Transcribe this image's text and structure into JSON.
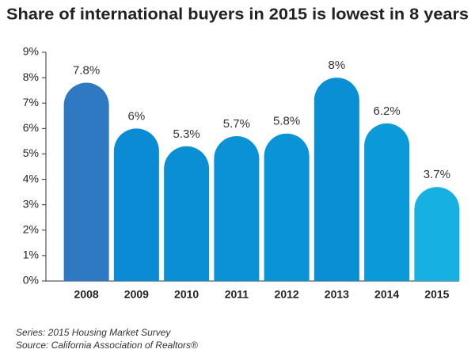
{
  "chart_data": {
    "type": "bar",
    "title": "Share of international buyers in 2015 is lowest in 8 years",
    "categories": [
      "2008",
      "2009",
      "2010",
      "2011",
      "2012",
      "2013",
      "2014",
      "2015"
    ],
    "values": [
      7.8,
      6,
      5.3,
      5.7,
      5.8,
      8,
      6.2,
      3.7
    ],
    "value_labels": [
      "7.8%",
      "6%",
      "5.3%",
      "5.7%",
      "5.8%",
      "8%",
      "6.2%",
      "3.7%"
    ],
    "colors": [
      "#2f78c2",
      "#0b8bd3",
      "#0a8fd5",
      "#0a91d6",
      "#0a93d7",
      "#0a8fd5",
      "#0b9ad9",
      "#17b0e2"
    ],
    "ylim": [
      0,
      9
    ],
    "yticks": [
      {
        "value": 0,
        "label": "0%"
      },
      {
        "value": 1,
        "label": "1%"
      },
      {
        "value": 2,
        "label": "2%"
      },
      {
        "value": 3,
        "label": "3%"
      },
      {
        "value": 4,
        "label": "4%"
      },
      {
        "value": 5,
        "label": "5%"
      },
      {
        "value": 6,
        "label": "6%"
      },
      {
        "value": 7,
        "label": "7%"
      },
      {
        "value": 8,
        "label": "8%"
      },
      {
        "value": 9,
        "label": "9%"
      }
    ],
    "notes": [
      "Series: 2015  Housing Market Survey",
      "Source: California Association of Realtors®"
    ]
  }
}
